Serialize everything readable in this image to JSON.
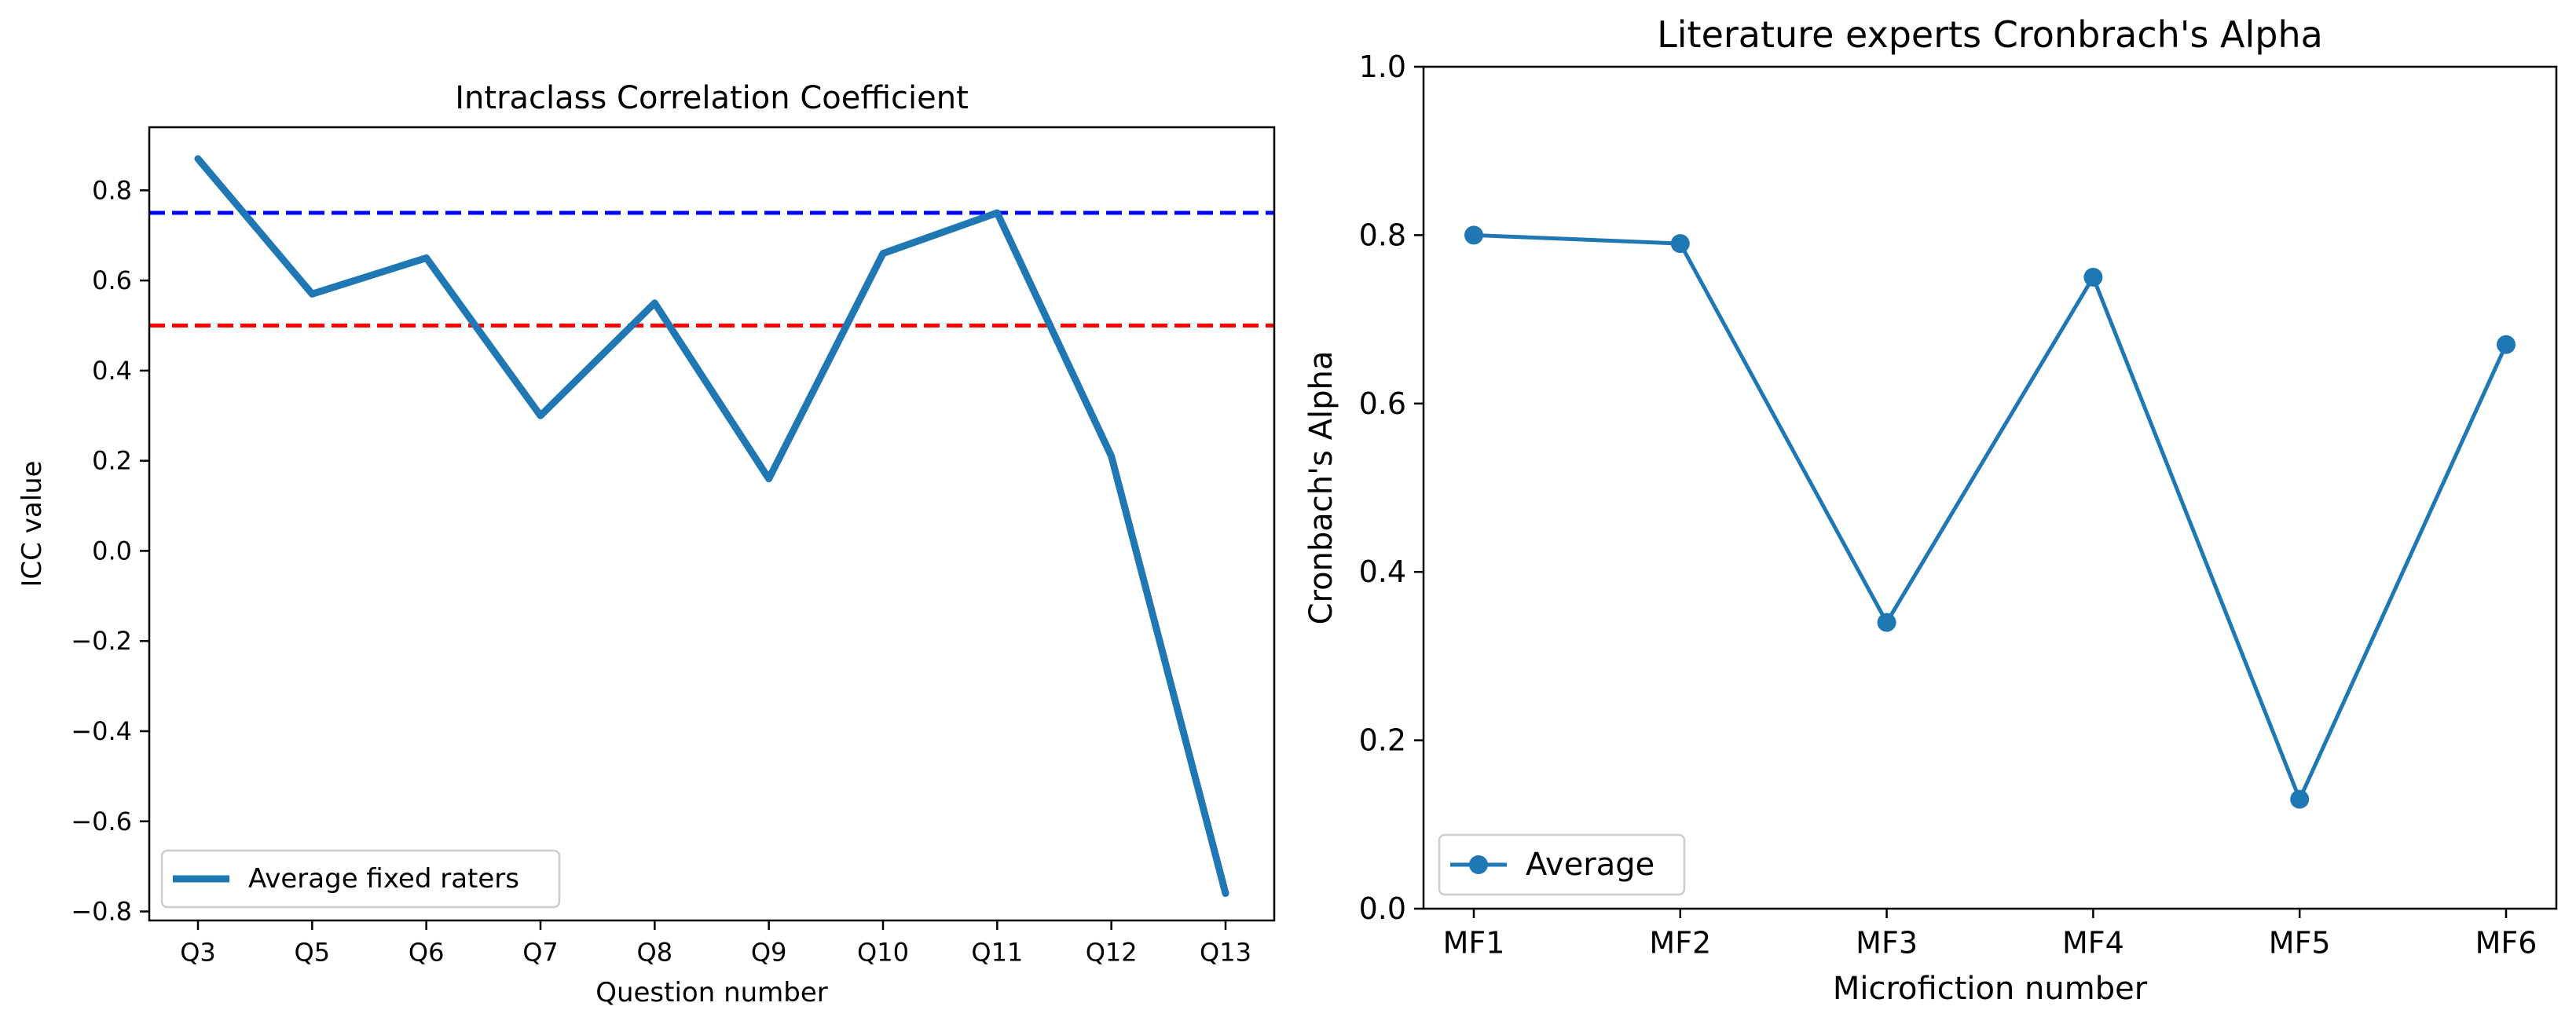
{
  "chart_data": [
    {
      "type": "line",
      "title": "Intraclass Correlation Coefficient",
      "xlabel": "Question number",
      "ylabel": "ICC value",
      "categories": [
        "Q3",
        "Q5",
        "Q6",
        "Q7",
        "Q8",
        "Q9",
        "Q10",
        "Q11",
        "Q12",
        "Q13"
      ],
      "series": [
        {
          "name": "Average fixed raters",
          "color": "#1f77b4",
          "values": [
            0.87,
            0.57,
            0.65,
            0.3,
            0.55,
            0.16,
            0.66,
            0.75,
            0.21,
            -0.76
          ]
        }
      ],
      "reference_lines": [
        {
          "value": 0.75,
          "color": "#0000ff",
          "style": "dashed"
        },
        {
          "value": 0.5,
          "color": "#ff0000",
          "style": "dashed"
        }
      ],
      "ylim": [
        -0.82,
        0.94
      ],
      "yticks": [
        -0.8,
        -0.6,
        -0.4,
        -0.2,
        0.0,
        0.2,
        0.4,
        0.6,
        0.8
      ],
      "ytick_labels": [
        "−0.8",
        "−0.6",
        "−0.4",
        "−0.2",
        "0.0",
        "0.2",
        "0.4",
        "0.6",
        "0.8"
      ],
      "legend": "lower-left",
      "grid": false
    },
    {
      "type": "line",
      "title": "Literature experts Cronbrach's Alpha",
      "xlabel": "Microfiction number",
      "ylabel": "Cronbach's Alpha",
      "categories": [
        "MF1",
        "MF2",
        "MF3",
        "MF4",
        "MF5",
        "MF6"
      ],
      "series": [
        {
          "name": "Average",
          "color": "#1f77b4",
          "marker": "circle",
          "values": [
            0.8,
            0.79,
            0.34,
            0.75,
            0.13,
            0.67
          ]
        }
      ],
      "ylim": [
        0.0,
        1.0
      ],
      "yticks": [
        0.0,
        0.2,
        0.4,
        0.6,
        0.8,
        1.0
      ],
      "ytick_labels": [
        "0.0",
        "0.2",
        "0.4",
        "0.6",
        "0.8",
        "1.0"
      ],
      "legend": "lower-left",
      "grid": false
    }
  ]
}
